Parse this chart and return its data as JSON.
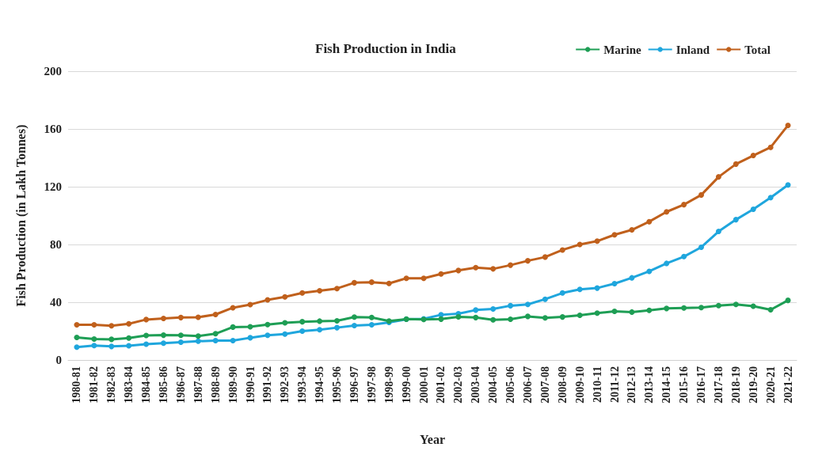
{
  "chart_data": {
    "type": "line",
    "title": "Fish Production in India",
    "xlabel": "Year",
    "ylabel": "Fish Production (in Lakh Tonnes)",
    "categories": [
      "1980-81",
      "1981-82",
      "1982-83",
      "1983-84",
      "1984-85",
      "1985-86",
      "1986-87",
      "1987-88",
      "1988-89",
      "1989-90",
      "1990-91",
      "1991-92",
      "1992-93",
      "1993-94",
      "1994-95",
      "1995-96",
      "1996-97",
      "1997-98",
      "1998-99",
      "1999-00",
      "2000-01",
      "2001-02",
      "2002-03",
      "2003-04",
      "2004-05",
      "2005-06",
      "2006-07",
      "2007-08",
      "2008-09",
      "2009-10",
      "2010-11",
      "2011-12",
      "2012-13",
      "2013-14",
      "2014-15",
      "2015-16",
      "2016-17",
      "2017-18",
      "2018-19",
      "2019-20",
      "2020-21",
      "2021-22"
    ],
    "series": [
      {
        "name": "Marine",
        "color": "#1e9e55",
        "values": [
          15.6,
          14.5,
          14.3,
          15.2,
          17.0,
          17.2,
          17.1,
          16.6,
          18.2,
          22.8,
          23.0,
          24.5,
          25.8,
          26.5,
          26.9,
          27.1,
          29.7,
          29.5,
          27.0,
          28.3,
          28.1,
          28.3,
          29.9,
          29.4,
          27.8,
          28.2,
          30.2,
          29.2,
          29.8,
          31.0,
          32.5,
          33.7,
          33.2,
          34.4,
          35.7,
          36.0,
          36.3,
          37.7,
          38.5,
          37.3,
          34.8,
          41.3
        ]
      },
      {
        "name": "Inland",
        "color": "#1fa6dd",
        "values": [
          8.9,
          10.0,
          9.4,
          9.9,
          11.0,
          11.6,
          12.3,
          13.0,
          13.4,
          13.4,
          15.4,
          17.1,
          17.9,
          20.0,
          21.0,
          22.4,
          23.8,
          24.4,
          26.0,
          28.2,
          28.5,
          31.3,
          32.1,
          34.6,
          35.3,
          37.6,
          38.5,
          42.1,
          46.4,
          48.9,
          49.8,
          52.9,
          56.9,
          61.4,
          66.9,
          71.6,
          78.1,
          89.0,
          97.2,
          104.4,
          112.5,
          121.2
        ]
      },
      {
        "name": "Total",
        "color": "#c0601c",
        "values": [
          24.4,
          24.4,
          23.7,
          25.1,
          28.0,
          28.8,
          29.4,
          29.6,
          31.5,
          36.2,
          38.4,
          41.6,
          43.7,
          46.4,
          47.9,
          49.5,
          53.5,
          53.9,
          53.0,
          56.6,
          56.6,
          59.6,
          62.0,
          64.0,
          63.1,
          65.7,
          68.7,
          71.3,
          76.2,
          80.0,
          82.3,
          86.7,
          90.1,
          95.8,
          102.6,
          107.6,
          114.3,
          126.8,
          135.7,
          141.6,
          147.3,
          162.5
        ]
      }
    ],
    "ylim": [
      0,
      200
    ],
    "yticks": [
      0,
      40,
      80,
      120,
      160,
      200
    ],
    "grid": "y",
    "legend": "top right",
    "marker": "circle",
    "line_style": "solid"
  }
}
